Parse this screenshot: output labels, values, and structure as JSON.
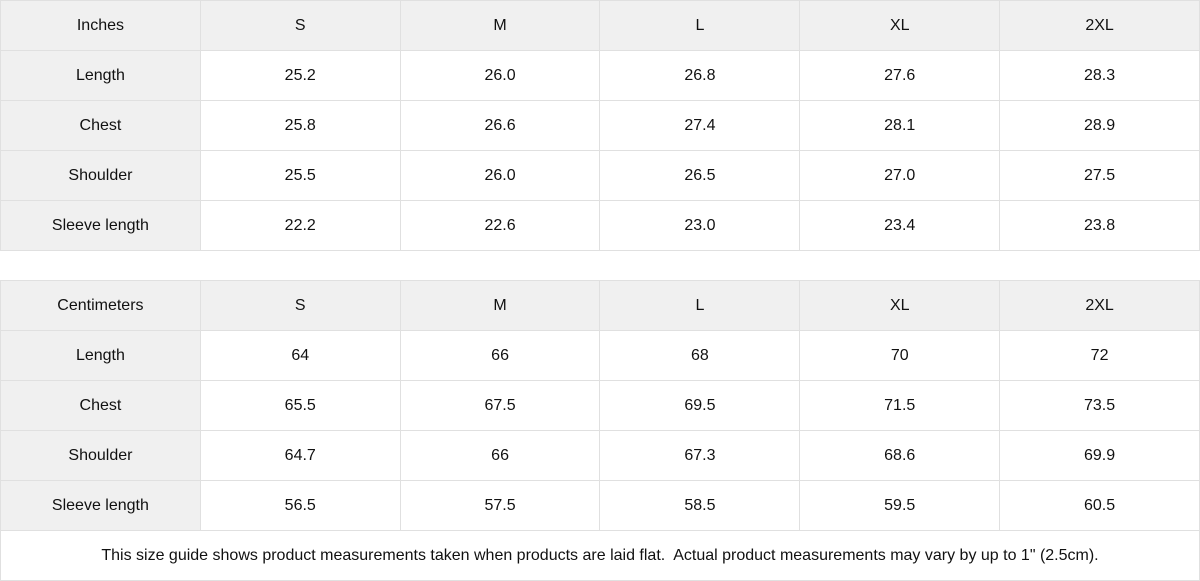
{
  "colors": {
    "header_bg": "#f0f0f0",
    "border": "#e0e0e0",
    "text": "#111111",
    "background": "#ffffff"
  },
  "tables": [
    {
      "unit_label": "Inches",
      "sizes": [
        "S",
        "M",
        "L",
        "XL",
        "2XL"
      ],
      "rows": [
        {
          "label": "Length",
          "values": [
            "25.2",
            "26.0",
            "26.8",
            "27.6",
            "28.3"
          ]
        },
        {
          "label": "Chest",
          "values": [
            "25.8",
            "26.6",
            "27.4",
            "28.1",
            "28.9"
          ]
        },
        {
          "label": "Shoulder",
          "values": [
            "25.5",
            "26.0",
            "26.5",
            "27.0",
            "27.5"
          ]
        },
        {
          "label": "Sleeve length",
          "values": [
            "22.2",
            "22.6",
            "23.0",
            "23.4",
            "23.8"
          ]
        }
      ]
    },
    {
      "unit_label": "Centimeters",
      "sizes": [
        "S",
        "M",
        "L",
        "XL",
        "2XL"
      ],
      "rows": [
        {
          "label": "Length",
          "values": [
            "64",
            "66",
            "68",
            "70",
            "72"
          ]
        },
        {
          "label": "Chest",
          "values": [
            "65.5",
            "67.5",
            "69.5",
            "71.5",
            "73.5"
          ]
        },
        {
          "label": "Shoulder",
          "values": [
            "64.7",
            "66",
            "67.3",
            "68.6",
            "69.9"
          ]
        },
        {
          "label": "Sleeve length",
          "values": [
            "56.5",
            "57.5",
            "58.5",
            "59.5",
            "60.5"
          ]
        }
      ]
    }
  ],
  "footer": {
    "note": "This size guide shows product measurements taken when products are laid flat.  Actual product measurements may vary by up to 1\" (2.5cm)."
  },
  "chart_data": [
    {
      "type": "table",
      "title": "Inches",
      "columns": [
        "Inches",
        "S",
        "M",
        "L",
        "XL",
        "2XL"
      ],
      "rows": [
        [
          "Length",
          25.2,
          26.0,
          26.8,
          27.6,
          28.3
        ],
        [
          "Chest",
          25.8,
          26.6,
          27.4,
          28.1,
          28.9
        ],
        [
          "Shoulder",
          25.5,
          26.0,
          26.5,
          27.0,
          27.5
        ],
        [
          "Sleeve length",
          22.2,
          22.6,
          23.0,
          23.4,
          23.8
        ]
      ]
    },
    {
      "type": "table",
      "title": "Centimeters",
      "columns": [
        "Centimeters",
        "S",
        "M",
        "L",
        "XL",
        "2XL"
      ],
      "rows": [
        [
          "Length",
          64,
          66,
          68,
          70,
          72
        ],
        [
          "Chest",
          65.5,
          67.5,
          69.5,
          71.5,
          73.5
        ],
        [
          "Shoulder",
          64.7,
          66,
          67.3,
          68.6,
          69.9
        ],
        [
          "Sleeve length",
          56.5,
          57.5,
          58.5,
          59.5,
          60.5
        ]
      ]
    }
  ]
}
